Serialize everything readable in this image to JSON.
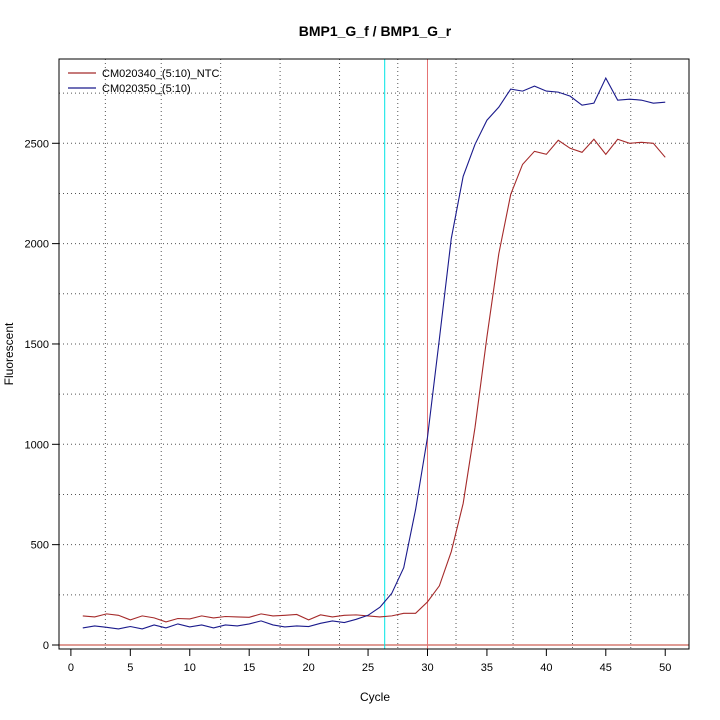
{
  "chart_data": {
    "type": "line",
    "title": "BMP1_G_f / BMP1_G_r",
    "xlabel": "Cycle",
    "ylabel": "Fluorescent",
    "xlim": [
      -1,
      52
    ],
    "ylim": [
      -20,
      2920
    ],
    "x_ticks": [
      0,
      5,
      10,
      15,
      20,
      25,
      30,
      35,
      40,
      45,
      50
    ],
    "x_tick_labels": [
      "0",
      "5",
      "10",
      "15",
      "20",
      "25",
      "30",
      "35",
      "40",
      "45",
      "50"
    ],
    "y_ticks": [
      0,
      500,
      1000,
      1500,
      2000,
      2500
    ],
    "y_tick_labels": [
      "0",
      "500",
      "1000",
      "1500",
      "2000",
      "2500"
    ],
    "grid": "dotted",
    "x_grid": [
      2.9,
      7.6,
      12.6,
      17.6,
      22.6,
      27.5,
      32.4,
      37.2,
      42.2,
      47.1
    ],
    "y_grid": [
      250,
      500,
      750,
      1000,
      1250,
      1500,
      1750,
      2000,
      2250,
      2500,
      2750
    ],
    "legend_position": "top-left",
    "threshold_line": {
      "value": 0,
      "color": "#c0392b"
    },
    "cycle_markers": [
      {
        "cycle": 26.4,
        "color": "#00e5e5"
      },
      {
        "cycle": 30.0,
        "color": "#e57373"
      }
    ],
    "x": [
      1,
      2,
      3,
      4,
      5,
      6,
      7,
      8,
      9,
      10,
      11,
      12,
      13,
      14,
      15,
      16,
      17,
      18,
      19,
      20,
      21,
      22,
      23,
      24,
      25,
      26,
      27,
      28,
      29,
      30,
      31,
      32,
      33,
      34,
      35,
      36,
      37,
      38,
      39,
      40,
      41,
      42,
      43,
      44,
      45,
      46,
      47,
      48,
      49,
      50
    ],
    "series": [
      {
        "name": "CM020340_(5:10)_NTC",
        "color": "#a52a2a",
        "values": [
          145,
          140,
          155,
          148,
          125,
          145,
          135,
          115,
          132,
          130,
          145,
          135,
          142,
          140,
          138,
          155,
          145,
          148,
          152,
          125,
          150,
          140,
          148,
          150,
          145,
          140,
          145,
          158,
          158,
          215,
          295,
          465,
          705,
          1085,
          1535,
          1950,
          2245,
          2395,
          2460,
          2445,
          2515,
          2475,
          2455,
          2520,
          2445,
          2520,
          2500,
          2505,
          2500,
          2430
        ]
      },
      {
        "name": "CM020350_(5:10)",
        "color": "#1a1a8c",
        "values": [
          85,
          95,
          88,
          80,
          92,
          80,
          100,
          85,
          105,
          90,
          100,
          85,
          100,
          95,
          105,
          120,
          100,
          90,
          95,
          92,
          108,
          120,
          112,
          128,
          148,
          188,
          258,
          385,
          675,
          1035,
          1525,
          2025,
          2335,
          2495,
          2615,
          2680,
          2770,
          2760,
          2785,
          2760,
          2755,
          2735,
          2690,
          2700,
          2825,
          2715,
          2720,
          2715,
          2700,
          2705
        ]
      }
    ]
  }
}
